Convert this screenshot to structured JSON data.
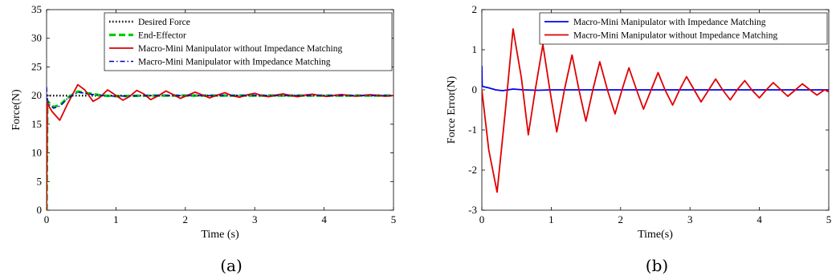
{
  "chart_data": [
    {
      "type": "line",
      "caption": "(a)",
      "xlabel": "Time (s)",
      "ylabel": "Force(N)",
      "xlim": [
        0,
        5
      ],
      "ylim": [
        0,
        35
      ],
      "xticks": [
        0,
        1,
        2,
        3,
        4,
        5
      ],
      "yticks": [
        0,
        5,
        10,
        15,
        20,
        25,
        30,
        35
      ],
      "legend_position": "top-right",
      "grid": false,
      "series": [
        {
          "name": "Desired Force",
          "color": "#000000",
          "style": "dotted",
          "x": [
            0,
            0.5,
            1,
            2,
            3,
            4,
            5
          ],
          "y": [
            20,
            20,
            20,
            20,
            20,
            20,
            20
          ]
        },
        {
          "name": "End-Effector",
          "color": "#00cc00",
          "style": "dashed",
          "x": [
            0,
            0.01,
            0.03,
            0.1,
            0.2,
            0.3,
            0.45,
            0.6,
            0.8,
            1.0,
            1.5,
            2,
            3,
            4,
            5
          ],
          "y": [
            0,
            19,
            18.8,
            18,
            18.4,
            19.6,
            20.7,
            20.4,
            20.0,
            19.9,
            20,
            20,
            20,
            20,
            20
          ]
        },
        {
          "name": "Macro-Mini Manipulator without Impedance Matching",
          "color": "#e00000",
          "style": "solid",
          "x": [
            0,
            0.01,
            0.03,
            0.08,
            0.19,
            0.3,
            0.45,
            0.55,
            0.67,
            0.76,
            0.88,
            0.98,
            1.1,
            1.19,
            1.3,
            1.4,
            1.5,
            1.6,
            1.72,
            1.82,
            1.93,
            2.04,
            2.14,
            2.25,
            2.35,
            2.46,
            2.57,
            2.67,
            2.78,
            2.88,
            3.0,
            3.1,
            3.2,
            3.31,
            3.41,
            3.52,
            3.62,
            3.73,
            3.83,
            3.94,
            4.04,
            4.15,
            4.25,
            4.36,
            4.46,
            4.57,
            4.67,
            4.78,
            4.88,
            5.0
          ],
          "y": [
            0,
            18.8,
            18.2,
            17.2,
            15.7,
            18.5,
            21.9,
            21.0,
            19.0,
            19.6,
            21.0,
            20.2,
            19.2,
            19.8,
            20.9,
            20.3,
            19.3,
            19.9,
            20.8,
            20.2,
            19.5,
            20.1,
            20.6,
            20.1,
            19.6,
            20.1,
            20.5,
            20.0,
            19.7,
            20.1,
            20.4,
            20.0,
            19.8,
            20.1,
            20.3,
            20.0,
            19.8,
            20.1,
            20.25,
            20.0,
            19.85,
            20.05,
            20.2,
            20.0,
            19.9,
            20.05,
            20.15,
            20.0,
            19.9,
            20.0
          ]
        },
        {
          "name": "Macro-Mini Manipulator with Impedance Matching",
          "color": "#0000cc",
          "style": "dashdot",
          "x": [
            0,
            0.01,
            0.03,
            0.1,
            0.2,
            0.3,
            0.45,
            0.6,
            0.8,
            1.0,
            1.5,
            2,
            3,
            4,
            5
          ],
          "y": [
            21.5,
            19.5,
            18.5,
            17.8,
            18.2,
            19.5,
            20.6,
            20.3,
            20.0,
            19.9,
            20,
            20,
            20,
            20,
            20
          ]
        }
      ]
    },
    {
      "type": "line",
      "caption": "(b)",
      "xlabel": "Time(s)",
      "ylabel": "Force Error(N)",
      "xlim": [
        0,
        5
      ],
      "ylim": [
        -3,
        2
      ],
      "xticks": [
        0,
        1,
        2,
        3,
        4,
        5
      ],
      "yticks": [
        -3,
        -2,
        -1,
        0,
        1,
        2
      ],
      "legend_position": "top-right",
      "grid": false,
      "series": [
        {
          "name": "Macro-Mini Manipulator with Impedance Matching",
          "color": "#0000ee",
          "style": "solid",
          "x": [
            0,
            0.005,
            0.02,
            0.1,
            0.2,
            0.3,
            0.45,
            0.6,
            0.8,
            1.0,
            2,
            3,
            4,
            5
          ],
          "y": [
            0.6,
            0.1,
            0.08,
            0.05,
            0.0,
            -0.02,
            0.02,
            0.0,
            -0.01,
            0.0,
            0.0,
            0.0,
            0.0,
            0.0
          ]
        },
        {
          "name": "Macro-Mini Manipulator without Impedance Matching",
          "color": "#e00000",
          "style": "solid",
          "x": [
            0,
            0.02,
            0.1,
            0.22,
            0.34,
            0.45,
            0.57,
            0.67,
            0.77,
            0.88,
            0.98,
            1.08,
            1.19,
            1.3,
            1.4,
            1.5,
            1.6,
            1.7,
            1.81,
            1.92,
            2.02,
            2.12,
            2.23,
            2.33,
            2.44,
            2.54,
            2.64,
            2.75,
            2.85,
            2.95,
            3.06,
            3.16,
            3.27,
            3.37,
            3.47,
            3.58,
            3.68,
            3.79,
            3.89,
            4.0,
            4.1,
            4.2,
            4.31,
            4.41,
            4.52,
            4.62,
            4.73,
            4.83,
            4.94,
            5.0
          ],
          "y": [
            0,
            -0.3,
            -1.5,
            -2.55,
            -0.5,
            1.52,
            0.3,
            -1.12,
            0.0,
            1.13,
            0.0,
            -1.05,
            0.0,
            0.87,
            0.0,
            -0.78,
            0.0,
            0.7,
            0.0,
            -0.6,
            0.0,
            0.55,
            0.0,
            -0.48,
            0.0,
            0.43,
            0.0,
            -0.38,
            0.0,
            0.33,
            0.0,
            -0.3,
            0.0,
            0.27,
            0.0,
            -0.25,
            0.0,
            0.23,
            0.0,
            -0.2,
            0.0,
            0.18,
            0.0,
            -0.16,
            0.0,
            0.15,
            0.0,
            -0.13,
            0.0,
            -0.05
          ]
        }
      ]
    }
  ]
}
